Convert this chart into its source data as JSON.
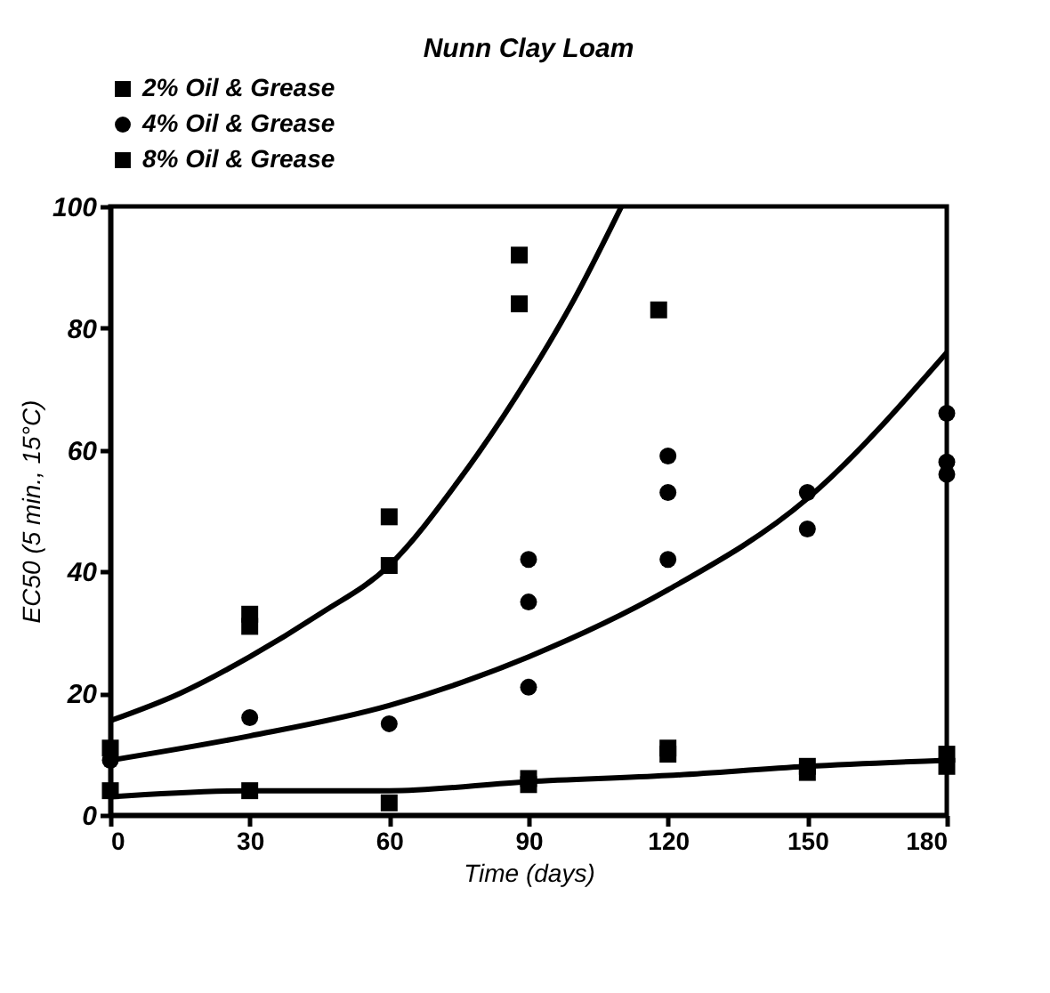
{
  "chart_data": {
    "type": "scatter",
    "title": "Nunn Clay Loam",
    "xlabel": "Time (days)",
    "ylabel": "EC50 (5 min., 15°C)",
    "xlim": [
      0,
      180
    ],
    "ylim": [
      0,
      100
    ],
    "xticks": [
      0,
      30,
      60,
      90,
      120,
      150,
      180
    ],
    "yticks": [
      0,
      20,
      40,
      60,
      80,
      100
    ],
    "legend": "top",
    "grid": false,
    "series": [
      {
        "name": "2% Oil & Grease",
        "color": "#000000",
        "marker": "square",
        "x": [
          0,
          30,
          30,
          60,
          60,
          88,
          88,
          118
        ],
        "values": [
          11,
          33,
          31,
          49,
          41,
          92,
          84,
          83
        ]
      },
      {
        "name": "4% Oil & Grease",
        "color": "#000000",
        "marker": "circle",
        "x": [
          0,
          30,
          60,
          90,
          90,
          90,
          120,
          120,
          120,
          150,
          150,
          180,
          180,
          180
        ],
        "values": [
          9,
          16,
          15,
          42,
          35,
          21,
          59,
          53,
          42,
          53,
          47,
          66,
          58,
          56
        ]
      },
      {
        "name": "8% Oil & Grease",
        "color": "#000000",
        "marker": "square",
        "x": [
          0,
          30,
          60,
          90,
          90,
          120,
          120,
          150,
          150,
          180,
          180
        ],
        "values": [
          4,
          4,
          2,
          5,
          6,
          11,
          10,
          7,
          8,
          10,
          8
        ]
      },
      {
        "type": "line",
        "color": "#000000",
        "x": [
          0,
          15,
          30,
          45,
          60,
          75,
          90,
          100,
          110
        ],
        "values": [
          15.5,
          20,
          26,
          33,
          41,
          55,
          72,
          85,
          100
        ]
      },
      {
        "type": "line",
        "color": "#000000",
        "x": [
          0,
          30,
          60,
          90,
          120,
          150,
          180
        ],
        "values": [
          9,
          13,
          18,
          26,
          37,
          52,
          76
        ]
      },
      {
        "type": "line",
        "color": "#000000",
        "x": [
          0,
          30,
          60,
          90,
          120,
          150,
          180
        ],
        "values": [
          3,
          4,
          4,
          5.5,
          6.5,
          8,
          9
        ]
      }
    ]
  }
}
